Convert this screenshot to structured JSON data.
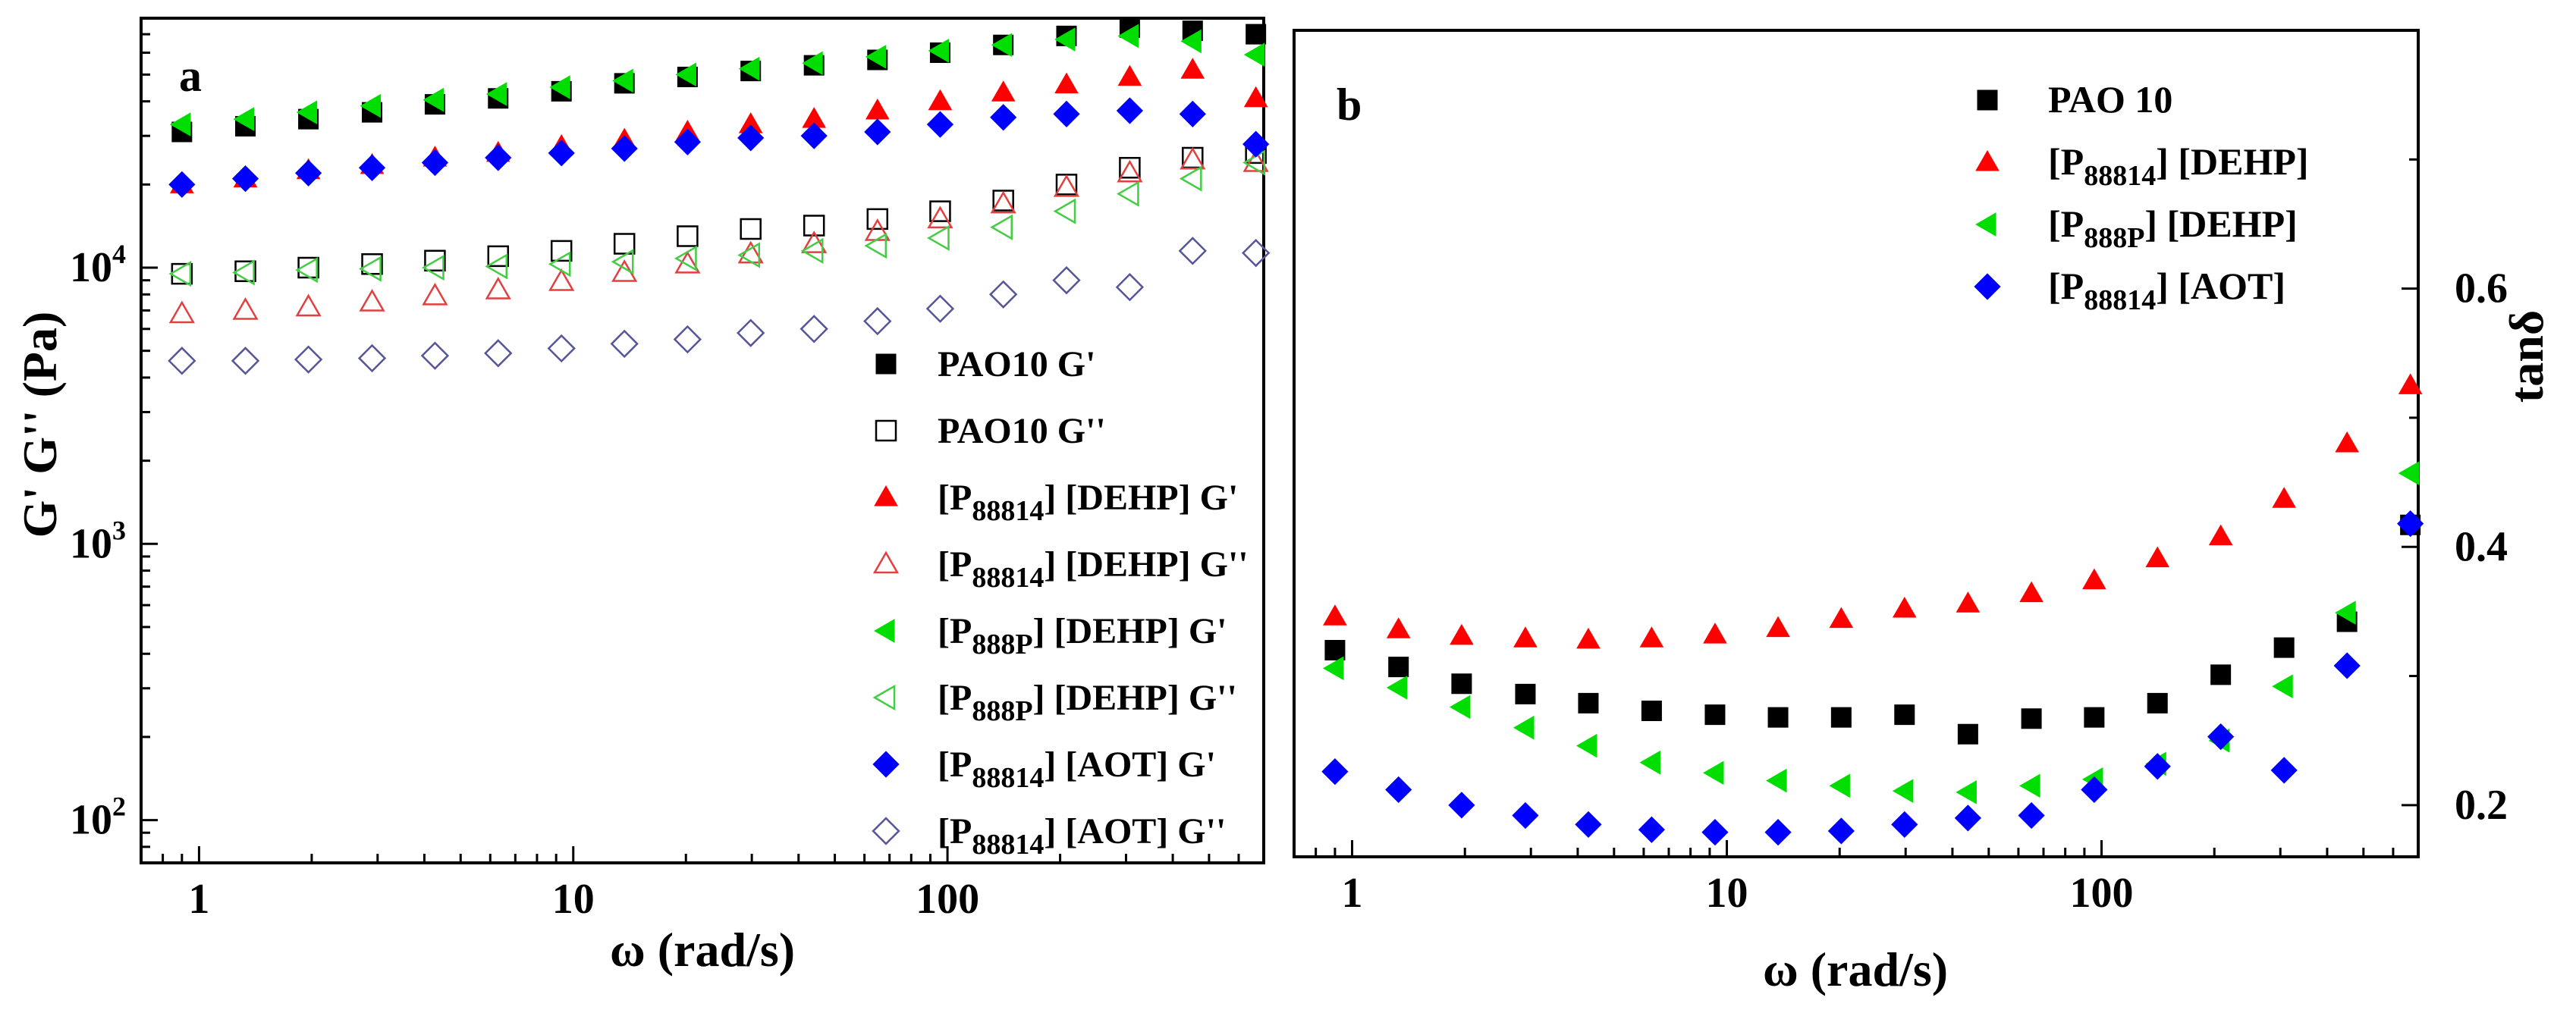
{
  "chart_data": [
    {
      "panel": "a",
      "type": "scatter",
      "x_scale": "log",
      "y_scale": "log",
      "xlabel": "ω (rad/s)",
      "ylabel": "G' G'' (Pa)",
      "xlim": [
        0.7,
        700
      ],
      "ylim": [
        70,
        80000
      ],
      "x_ticks": [
        {
          "v": 1,
          "label": "1"
        },
        {
          "v": 10,
          "label": "10"
        },
        {
          "v": 100,
          "label": "100"
        }
      ],
      "y_ticks": [
        {
          "v": 100,
          "base": "10",
          "exp": "2"
        },
        {
          "v": 1000,
          "base": "10",
          "exp": "3"
        },
        {
          "v": 10000,
          "base": "10",
          "exp": "4"
        }
      ],
      "legend_position": "bottom-right",
      "x": [
        0.9,
        1.33,
        1.96,
        2.9,
        4.27,
        6.3,
        9.3,
        13.7,
        20.2,
        29.8,
        44,
        65,
        95.6,
        141,
        208,
        307,
        452,
        667
      ],
      "series": [
        {
          "name": "PAO10 G'",
          "label": {
            "text": "PAO10 G'"
          },
          "marker": "square",
          "filled": true,
          "color": "#000000",
          "values": [
            31000,
            32500,
            34500,
            36500,
            39000,
            41000,
            43500,
            46500,
            49000,
            51500,
            54000,
            56500,
            60000,
            64000,
            69000,
            74000,
            72000,
            70000
          ]
        },
        {
          "name": "PAO10 G''",
          "label": {
            "text": "PAO10 G''"
          },
          "marker": "square",
          "filled": false,
          "color": "#000000",
          "values": [
            9500,
            9700,
            10000,
            10300,
            10600,
            11000,
            11500,
            12200,
            13000,
            13800,
            14200,
            15000,
            16000,
            17500,
            20000,
            23000,
            25000,
            26000
          ]
        },
        {
          "name": "[P88814] [DEHP] G'",
          "label": {
            "pre": "[P",
            "sub": "88814",
            "post": "] [DEHP] G'"
          },
          "marker": "triangle-up",
          "filled": true,
          "color": "#ff0000",
          "values": [
            20000,
            21000,
            22500,
            23500,
            25000,
            26000,
            27500,
            29000,
            31000,
            33000,
            34500,
            37000,
            40000,
            43000,
            46000,
            49000,
            52000,
            41000
          ]
        },
        {
          "name": "[P88814] [DEHP] G''",
          "label": {
            "pre": "[P",
            "sub": "88814",
            "post": "] [DEHP] G''"
          },
          "marker": "triangle-up",
          "filled": false,
          "color": "#e04040",
          "values": [
            6800,
            7000,
            7200,
            7500,
            7900,
            8300,
            8900,
            9600,
            10300,
            11200,
            12200,
            13500,
            15000,
            17000,
            19500,
            22000,
            24500,
            24000
          ]
        },
        {
          "name": "[P888P] [DEHP] G'",
          "label": {
            "pre": "[P",
            "sub": "888P",
            "post": "] [DEHP] G'"
          },
          "marker": "triangle-left",
          "filled": true,
          "color": "#00dd00",
          "values": [
            33000,
            34500,
            36500,
            38500,
            40500,
            42500,
            45000,
            47500,
            50000,
            52500,
            55000,
            58000,
            61000,
            64000,
            67000,
            69000,
            66000,
            59000
          ]
        },
        {
          "name": "[P888P] [DEHP] G''",
          "label": {
            "pre": "[P",
            "sub": "888P",
            "post": "] [DEHP] G''"
          },
          "marker": "triangle-left",
          "filled": false,
          "color": "#44cc44",
          "values": [
            9500,
            9600,
            9800,
            9900,
            10000,
            10100,
            10300,
            10500,
            10800,
            11100,
            11500,
            12000,
            12800,
            14000,
            16000,
            18500,
            21000,
            24000
          ]
        },
        {
          "name": "[P88814] [AOT] G'",
          "label": {
            "pre": "[P",
            "sub": "88814",
            "post": "] [AOT] G'"
          },
          "marker": "diamond",
          "filled": true,
          "color": "#0000ff",
          "values": [
            20000,
            21000,
            22000,
            23000,
            24000,
            25000,
            26000,
            27000,
            28500,
            29500,
            30000,
            31000,
            33000,
            35000,
            36000,
            37000,
            36000,
            28000
          ]
        },
        {
          "name": "[P88814] [AOT] G''",
          "label": {
            "pre": "[P",
            "sub": "88814",
            "post": "] [AOT] G''"
          },
          "marker": "diamond",
          "filled": false,
          "color": "#555599",
          "values": [
            4600,
            4600,
            4650,
            4700,
            4800,
            4900,
            5100,
            5300,
            5500,
            5800,
            6000,
            6400,
            7100,
            8000,
            9000,
            8500,
            11500,
            11300
          ]
        }
      ]
    },
    {
      "panel": "b",
      "type": "scatter",
      "x_scale": "log",
      "y_scale": "linear",
      "y_axis_side": "right",
      "xlabel": "ω (rad/s)",
      "ylabel": "tanδ",
      "xlim": [
        0.7,
        700
      ],
      "ylim": [
        0.16,
        0.8
      ],
      "x_ticks": [
        {
          "v": 1,
          "label": "1"
        },
        {
          "v": 10,
          "label": "10"
        },
        {
          "v": 100,
          "label": "100"
        }
      ],
      "y_ticks": [
        {
          "v": 0.2,
          "label": "0.2"
        },
        {
          "v": 0.4,
          "label": "0.4"
        },
        {
          "v": 0.6,
          "label": "0.6"
        }
      ],
      "legend_position": "top-right",
      "x": [
        0.9,
        1.33,
        1.96,
        2.9,
        4.27,
        6.3,
        9.3,
        13.7,
        20.2,
        29.8,
        44,
        65,
        95.6,
        141,
        208,
        307,
        452,
        667
      ],
      "series": [
        {
          "name": "PAO 10",
          "label": {
            "text": "PAO 10"
          },
          "marker": "square",
          "filled": true,
          "color": "#000000",
          "values": [
            0.32,
            0.307,
            0.294,
            0.286,
            0.279,
            0.273,
            0.27,
            0.268,
            0.268,
            0.27,
            0.255,
            0.267,
            0.268,
            0.279,
            0.301,
            0.322,
            0.342,
            0.417
          ]
        },
        {
          "name": "[P88814] [DEHP]",
          "label": {
            "pre": "[P",
            "sub": "88814",
            "post": "] [DEHP]"
          },
          "marker": "triangle-up",
          "filled": true,
          "color": "#ff0000",
          "values": [
            0.346,
            0.336,
            0.331,
            0.329,
            0.328,
            0.329,
            0.332,
            0.337,
            0.344,
            0.352,
            0.356,
            0.364,
            0.374,
            0.391,
            0.408,
            0.437,
            0.48,
            0.525
          ]
        },
        {
          "name": "[P888P] [DEHP]",
          "label": {
            "pre": "[P",
            "sub": "888P",
            "post": "] [DEHP]"
          },
          "marker": "triangle-left",
          "filled": true,
          "color": "#00dd00",
          "values": [
            0.306,
            0.291,
            0.276,
            0.26,
            0.246,
            0.233,
            0.225,
            0.219,
            0.215,
            0.211,
            0.21,
            0.215,
            0.22,
            0.232,
            0.25,
            0.292,
            0.349,
            0.457
          ]
        },
        {
          "name": "[P88814] [AOT]",
          "label": {
            "pre": "[P",
            "sub": "88814",
            "post": "] [AOT]"
          },
          "marker": "diamond",
          "filled": true,
          "color": "#0000ff",
          "values": [
            0.226,
            0.212,
            0.2,
            0.192,
            0.185,
            0.181,
            0.179,
            0.179,
            0.18,
            0.185,
            0.19,
            0.192,
            0.212,
            0.23,
            0.253,
            0.227,
            0.308,
            0.418
          ]
        }
      ]
    }
  ],
  "panel_a": {
    "letter": "a"
  },
  "panel_b": {
    "letter": "b"
  }
}
